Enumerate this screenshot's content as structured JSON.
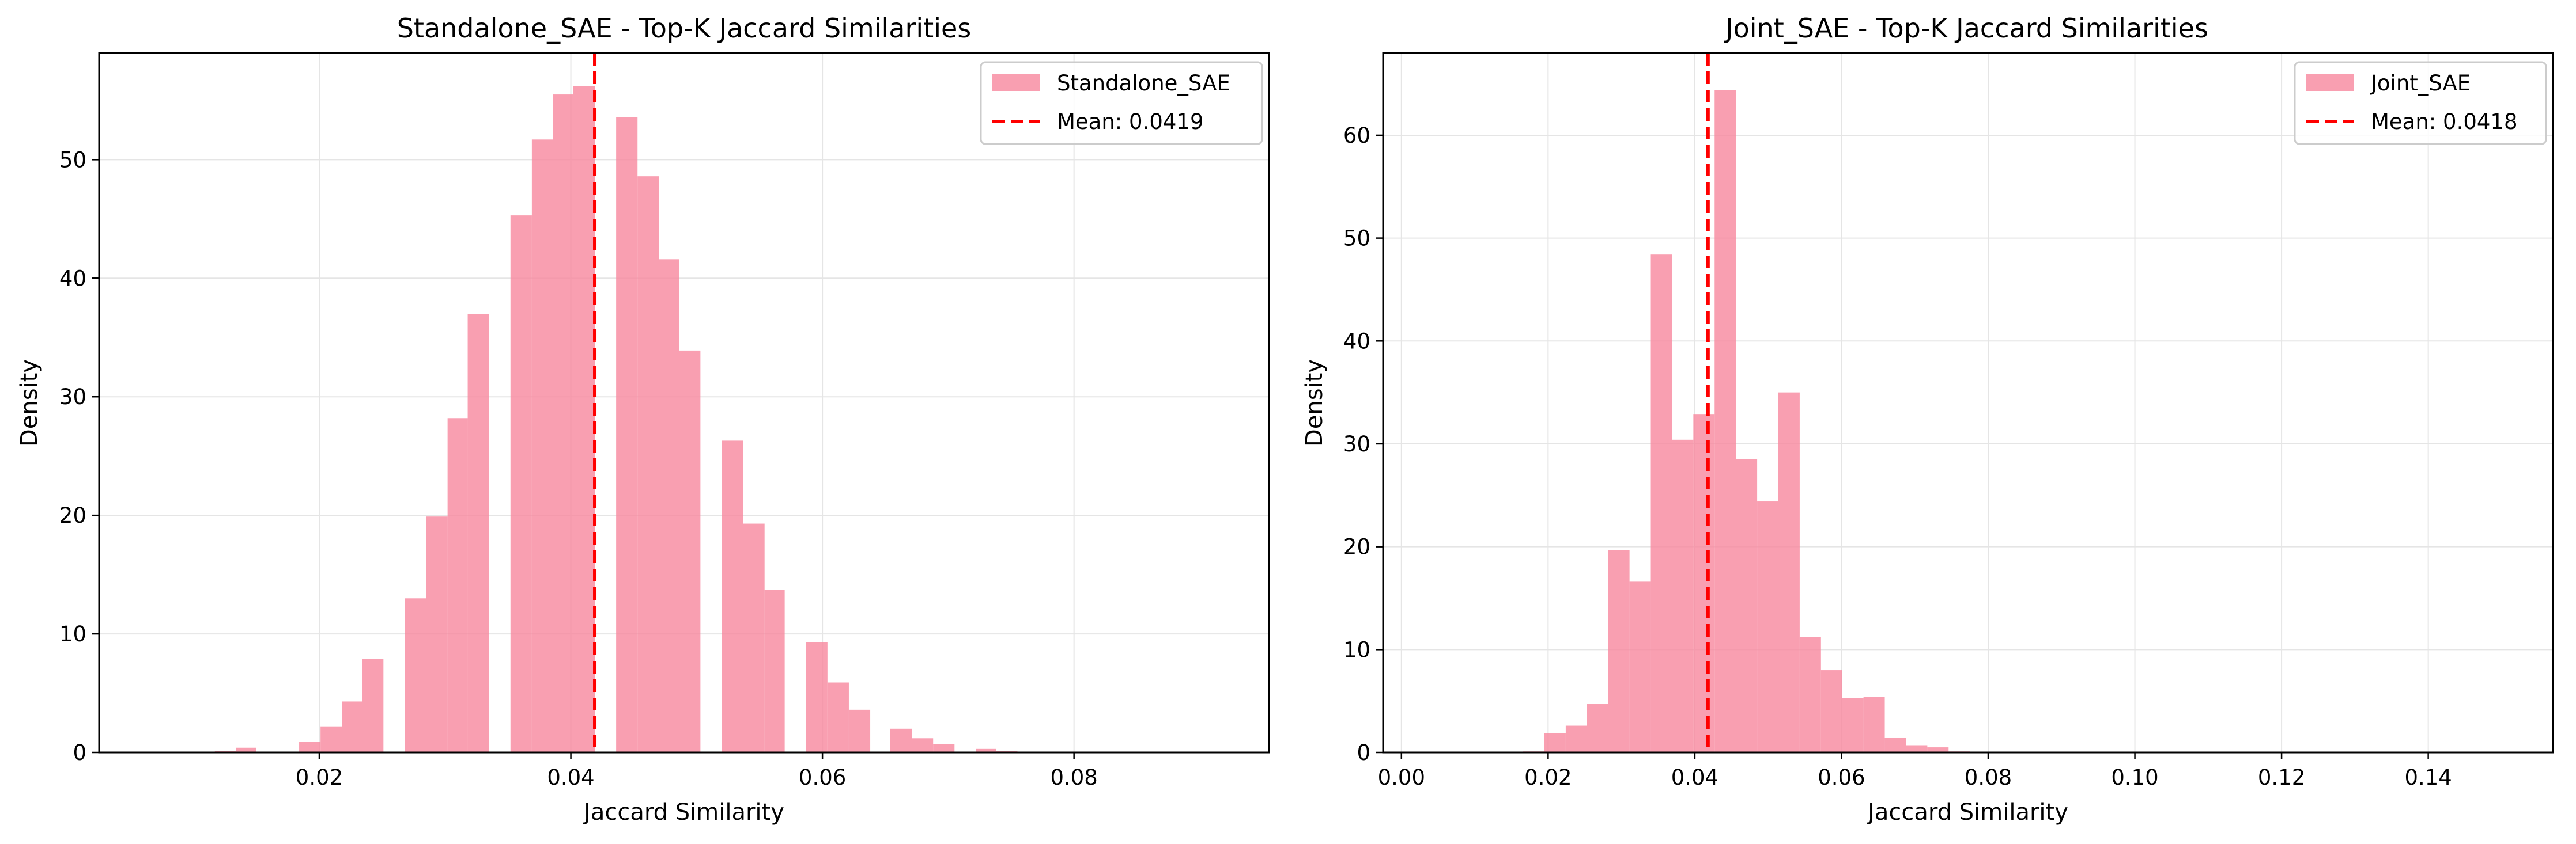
{
  "chart_data": [
    {
      "type": "bar",
      "title": "Standalone_SAE - Top-K Jaccard Similarities",
      "xlabel": "Jaccard Similarity",
      "ylabel": "Density",
      "xlim": [
        0.0025,
        0.0955
      ],
      "ylim": [
        0,
        59
      ],
      "xticks": [
        0.02,
        0.04,
        0.06,
        0.08
      ],
      "xtick_labels": [
        "0.02",
        "0.04",
        "0.06",
        "0.08"
      ],
      "yticks": [
        0,
        10,
        20,
        30,
        40,
        50
      ],
      "ytick_labels": [
        "0",
        "10",
        "20",
        "30",
        "40",
        "50"
      ],
      "grid": true,
      "legend_placement": "top-right",
      "bar_color": "#f7879d",
      "mean_line_color": "#ff0000",
      "legend": {
        "series_label": "Standalone_SAE",
        "mean_label": "Mean: 0.0419"
      },
      "mean": 0.0419,
      "bin_edges": [
        0.01,
        0.0117,
        0.0134,
        0.015,
        0.0167,
        0.0184,
        0.0201,
        0.0218,
        0.0234,
        0.0251,
        0.0268,
        0.0285,
        0.0302,
        0.0318,
        0.0335,
        0.0352,
        0.0369,
        0.0386,
        0.0402,
        0.0419,
        0.0436,
        0.0453,
        0.047,
        0.0486,
        0.0503,
        0.052,
        0.0537,
        0.0554,
        0.057,
        0.0587,
        0.0604,
        0.0621,
        0.0638,
        0.0654,
        0.0671,
        0.0688,
        0.0705,
        0.0722,
        0.0738,
        0.0755,
        0.0772,
        0.0789,
        0.0806,
        0.0822,
        0.0839,
        0.0856,
        0.0873,
        0.089,
        0.0906,
        0.0923
      ],
      "values": [
        0.0,
        0.1,
        0.4,
        0.0,
        0.0,
        0.9,
        2.2,
        4.3,
        7.9,
        0.0,
        13.0,
        19.9,
        28.2,
        37.0,
        0.0,
        45.3,
        51.7,
        55.5,
        56.2,
        0.0,
        53.6,
        48.6,
        41.6,
        33.9,
        0.0,
        26.3,
        19.3,
        13.7,
        0.0,
        9.3,
        5.9,
        3.6,
        0.0,
        2.0,
        1.2,
        0.7,
        0.0,
        0.3,
        0.1,
        0.0,
        0.0,
        0.05,
        0.0,
        0.0,
        0.0,
        0.0,
        0.0,
        0.0,
        0.0
      ]
    },
    {
      "type": "bar",
      "title": "Joint_SAE - Top-K Jaccard Similarities",
      "xlabel": "Jaccard Similarity",
      "ylabel": "Density",
      "xlim": [
        -0.0025,
        0.157
      ],
      "ylim": [
        0,
        68
      ],
      "xticks": [
        0.0,
        0.02,
        0.04,
        0.06,
        0.08,
        0.1,
        0.12,
        0.14
      ],
      "xtick_labels": [
        "0.00",
        "0.02",
        "0.04",
        "0.06",
        "0.08",
        "0.10",
        "0.12",
        "0.14"
      ],
      "yticks": [
        0,
        10,
        20,
        30,
        40,
        50,
        60
      ],
      "ytick_labels": [
        "0",
        "10",
        "20",
        "30",
        "40",
        "50",
        "60"
      ],
      "grid": true,
      "legend_placement": "top-right",
      "bar_color": "#f7879d",
      "mean_line_color": "#ff0000",
      "legend": {
        "series_label": "Joint_SAE",
        "mean_label": "Mean: 0.0418"
      },
      "mean": 0.0418,
      "bin_edges": [
        0.005,
        0.0079,
        0.0108,
        0.0137,
        0.0166,
        0.0195,
        0.0224,
        0.0253,
        0.0282,
        0.0311,
        0.034,
        0.0369,
        0.0398,
        0.0427,
        0.0456,
        0.0485,
        0.0514,
        0.0543,
        0.0572,
        0.0601,
        0.063,
        0.0659,
        0.0688,
        0.0717,
        0.0746,
        0.0775,
        0.0804,
        0.0833,
        0.0862,
        0.0891,
        0.092,
        0.0949,
        0.0978,
        0.1007,
        0.1036,
        0.1065,
        0.1094,
        0.1123,
        0.1152,
        0.1181,
        0.121,
        0.1239,
        0.1268,
        0.1297,
        0.1326,
        0.1355,
        0.1384,
        0.1413,
        0.1442,
        0.1471,
        0.15
      ],
      "values": [
        0.0,
        0.0,
        0.0,
        0.0,
        0.1,
        1.9,
        2.6,
        4.7,
        19.7,
        16.6,
        48.4,
        30.4,
        32.9,
        64.4,
        28.5,
        24.4,
        35.0,
        11.2,
        8.0,
        5.3,
        5.4,
        1.4,
        0.7,
        0.5,
        0.1,
        0.05,
        0.0,
        0.0,
        0.0,
        0.0,
        0.0,
        0.0,
        0.0,
        0.0,
        0.0,
        0.0,
        0.0,
        0.0,
        0.0,
        0.0,
        0.0,
        0.0,
        0.0,
        0.0,
        0.0,
        0.0,
        0.0,
        0.0,
        0.0,
        0.0
      ]
    }
  ]
}
